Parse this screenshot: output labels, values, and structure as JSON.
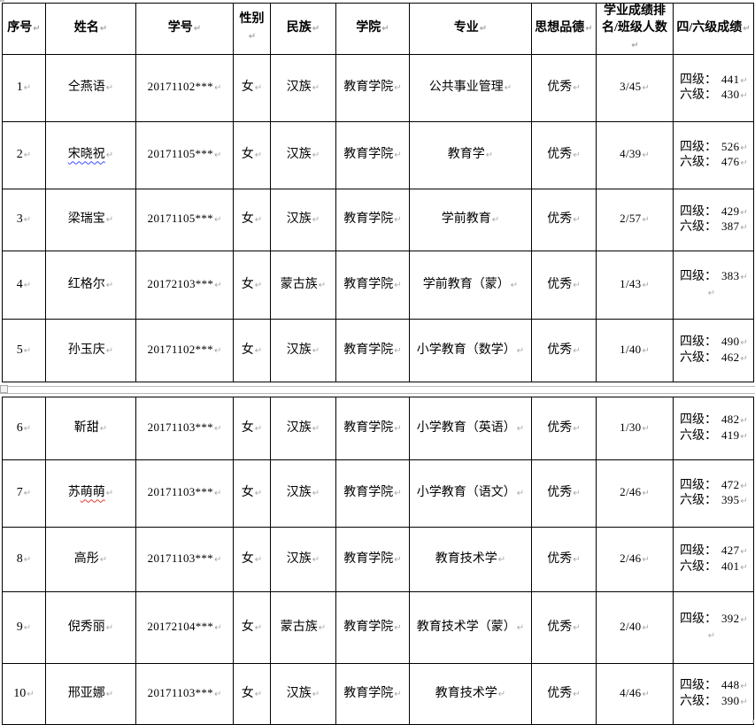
{
  "marks": {
    "paragraph": "↵",
    "row_end": "¤"
  },
  "table": {
    "headers": [
      "序号",
      "姓名",
      "学号",
      "性别",
      "民族",
      "学院",
      "专业",
      "思想品德",
      "学业成绩排名/班级人数",
      "四/六级成绩"
    ],
    "cet4_label": "四级：",
    "cet6_label": "六级：",
    "rows": [
      {
        "num": "1",
        "name_plain": "仝燕语",
        "name_marked": "",
        "mark": "",
        "student_id": "20171102***",
        "gender": "女",
        "ethnicity": "汉族",
        "college": "教育学院",
        "major": "公共事业管理",
        "moral": "优秀",
        "rank": "3/45",
        "cet4": "441",
        "cet6": "430"
      },
      {
        "num": "2",
        "name_plain": "",
        "name_marked": "宋晓祝",
        "mark": "blue-wavy",
        "student_id": "20171105***",
        "gender": "女",
        "ethnicity": "汉族",
        "college": "教育学院",
        "major": "教育学",
        "moral": "优秀",
        "rank": "4/39",
        "cet4": "526",
        "cet6": "476"
      },
      {
        "num": "3",
        "name_plain": "梁瑞宝",
        "name_marked": "",
        "mark": "",
        "student_id": "20171105***",
        "gender": "女",
        "ethnicity": "汉族",
        "college": "教育学院",
        "major": "学前教育",
        "moral": "优秀",
        "rank": "2/57",
        "cet4": "429",
        "cet6": "387"
      },
      {
        "num": "4",
        "name_plain": "红格尔",
        "name_marked": "",
        "mark": "",
        "student_id": "20172103***",
        "gender": "女",
        "ethnicity": "蒙古族",
        "college": "教育学院",
        "major": "学前教育（蒙）",
        "moral": "优秀",
        "rank": "1/43",
        "cet4": "383",
        "cet6": null
      },
      {
        "num": "5",
        "name_plain": "孙玉庆",
        "name_marked": "",
        "mark": "",
        "student_id": "20171102***",
        "gender": "女",
        "ethnicity": "汉族",
        "college": "教育学院",
        "major": "小学教育（数学）",
        "moral": "优秀",
        "rank": "1/40",
        "cet4": "490",
        "cet6": "462"
      },
      {
        "num": "6",
        "name_plain": "靳甜",
        "name_marked": "",
        "mark": "",
        "student_id": "20171103***",
        "gender": "女",
        "ethnicity": "汉族",
        "college": "教育学院",
        "major": "小学教育（英语）",
        "moral": "优秀",
        "rank": "1/30",
        "cet4": "482",
        "cet6": "419"
      },
      {
        "num": "7",
        "name_plain": "苏",
        "name_marked": "萌萌",
        "mark": "red-wavy",
        "student_id": "20171103***",
        "gender": "女",
        "ethnicity": "汉族",
        "college": "教育学院",
        "major": "小学教育（语文）",
        "moral": "优秀",
        "rank": "2/46",
        "cet4": "472",
        "cet6": "395"
      },
      {
        "num": "8",
        "name_plain": "高彤",
        "name_marked": "",
        "mark": "",
        "student_id": "20171103***",
        "gender": "女",
        "ethnicity": "汉族",
        "college": "教育学院",
        "major": "教育技术学",
        "moral": "优秀",
        "rank": "2/46",
        "cet4": "427",
        "cet6": "401"
      },
      {
        "num": "9",
        "name_plain": "倪秀丽",
        "name_marked": "",
        "mark": "",
        "student_id": "20172104***",
        "gender": "女",
        "ethnicity": "蒙古族",
        "college": "教育学院",
        "major": "教育技术学（蒙）",
        "moral": "优秀",
        "rank": "2/40",
        "cet4": "392",
        "cet6": null
      },
      {
        "num": "10",
        "name_plain": "邢亚娜",
        "name_marked": "",
        "mark": "",
        "student_id": "20171103***",
        "gender": "女",
        "ethnicity": "汉族",
        "college": "教育学院",
        "major": "教育技术学",
        "moral": "优秀",
        "rank": "4/46",
        "cet4": "448",
        "cet6": "390"
      }
    ]
  },
  "sections": {
    "page1_rows": [
      0,
      1,
      2,
      3,
      4
    ],
    "page2_rows": [
      5,
      6,
      7,
      8,
      9
    ]
  }
}
